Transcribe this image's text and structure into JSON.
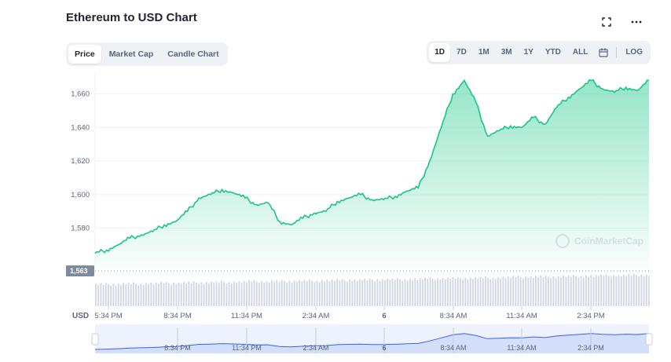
{
  "header": {
    "title": "Ethereum to USD Chart",
    "fullscreen_icon": "expand-icon",
    "more_icon": "more-dots-icon"
  },
  "tabs": [
    {
      "label": "Price",
      "active": true
    },
    {
      "label": "Market Cap",
      "active": false
    },
    {
      "label": "Candle Chart",
      "active": false
    }
  ],
  "ranges": [
    {
      "label": "1D",
      "active": true
    },
    {
      "label": "7D",
      "active": false
    },
    {
      "label": "1M",
      "active": false
    },
    {
      "label": "3M",
      "active": false
    },
    {
      "label": "1Y",
      "active": false
    },
    {
      "label": "YTD",
      "active": false
    },
    {
      "label": "ALL",
      "active": false
    }
  ],
  "calendar_icon": "calendar-icon",
  "log_label": "LOG",
  "watermark": "CoinMarketCap",
  "currency_label": "USD",
  "current_price_label": "1,563",
  "colors": {
    "line": "#16c784",
    "area_top": "#16c784",
    "navigator_line": "#3861fb",
    "navigator_fill": "#dfe7fd",
    "price_tag": "#808a9d"
  },
  "chart_data": {
    "type": "area",
    "title": "Ethereum to USD Chart",
    "ylim": [
      1555,
      1672
    ],
    "yticks": [
      1580,
      1600,
      1620,
      1640,
      1660
    ],
    "ytick_labels": [
      "1,580",
      "1,600",
      "1,620",
      "1,640",
      "1,660"
    ],
    "xtick_labels": [
      "5:34 PM",
      "8:34 PM",
      "11:34 PM",
      "2:34 AM",
      "6",
      "8:34 AM",
      "11:34 AM",
      "2:34 PM"
    ],
    "x_hours": [
      0,
      0.5,
      1,
      1.5,
      2,
      2.5,
      3,
      3.5,
      4,
      4.5,
      5,
      5.5,
      6,
      6.5,
      7,
      7.5,
      8,
      8.5,
      9,
      9.5,
      10,
      10.5,
      11,
      11.5,
      12,
      12.5,
      13,
      13.5,
      14,
      14.5,
      15,
      15.5,
      16,
      16.5,
      17,
      17.5,
      18,
      18.5,
      19,
      19.5,
      20,
      20.5,
      21,
      21.5,
      22,
      22.5,
      23,
      23.5,
      24
    ],
    "y": [
      1565,
      1567,
      1570,
      1574,
      1576,
      1578,
      1582,
      1584,
      1590,
      1598,
      1600,
      1603,
      1601,
      1598,
      1594,
      1595,
      1584,
      1582,
      1586,
      1589,
      1590,
      1596,
      1598,
      1600,
      1597,
      1597,
      1599,
      1602,
      1604,
      1620,
      1640,
      1660,
      1668,
      1655,
      1635,
      1638,
      1641,
      1640,
      1646,
      1642,
      1652,
      1658,
      1663,
      1668,
      1663,
      1661,
      1664,
      1662,
      1668
    ]
  }
}
